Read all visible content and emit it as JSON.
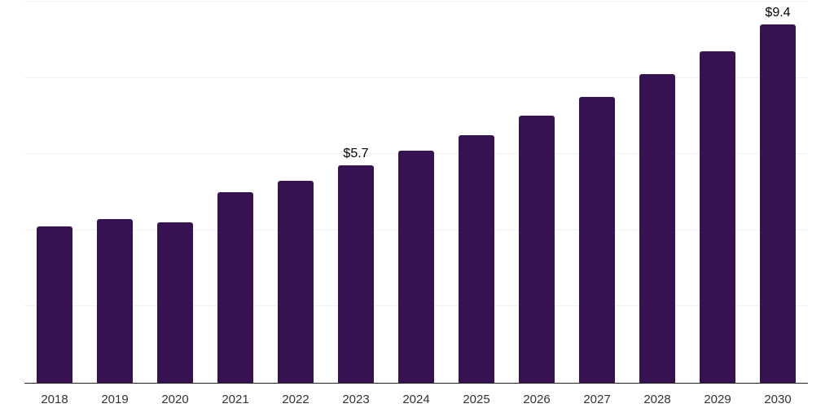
{
  "chart_data": {
    "type": "bar",
    "title": "",
    "xlabel": "",
    "ylabel": "",
    "categories": [
      "2018",
      "2019",
      "2020",
      "2021",
      "2022",
      "2023",
      "2024",
      "2025",
      "2026",
      "2027",
      "2028",
      "2029",
      "2030"
    ],
    "values": [
      4.1,
      4.3,
      4.2,
      5.0,
      5.3,
      5.7,
      6.1,
      6.5,
      7.0,
      7.5,
      8.1,
      8.7,
      9.4
    ],
    "data_labels": {
      "2023": "$5.7",
      "2030": "$9.4"
    },
    "ylim": [
      0,
      10
    ],
    "gridline_values": [
      2,
      4,
      6,
      8,
      10
    ],
    "grid": "horizontal-only",
    "legend": "none",
    "y_axis_labels": "none"
  },
  "colors": {
    "bar": "#371253",
    "grid": "#f1f1f1",
    "axis": "#222222",
    "tick_label": "#333333",
    "data_label": "#000000",
    "background": "#ffffff"
  }
}
